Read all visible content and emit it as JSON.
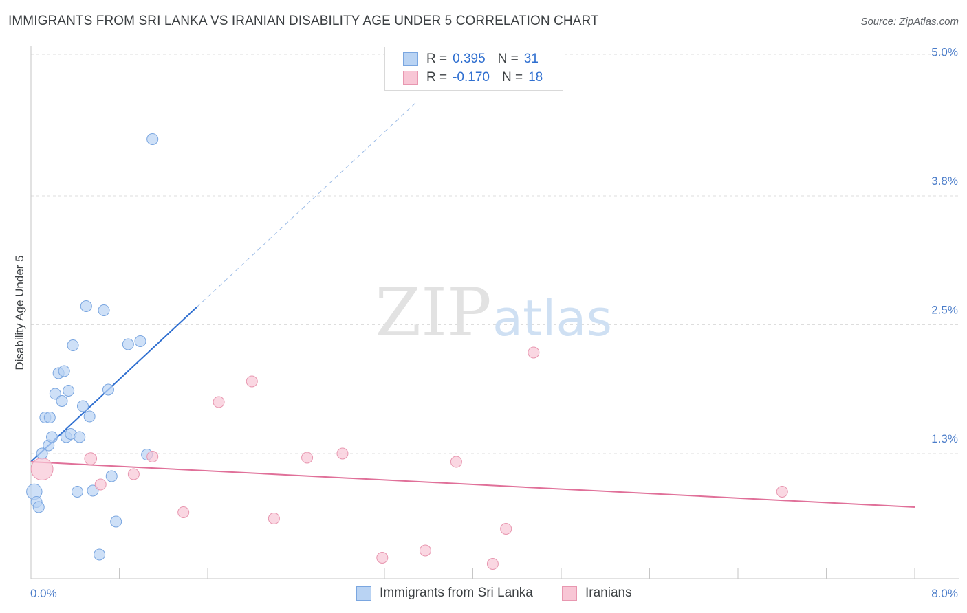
{
  "header": {
    "title": "IMMIGRANTS FROM SRI LANKA VS IRANIAN DISABILITY AGE UNDER 5 CORRELATION CHART",
    "source": "Source: ZipAtlas.com"
  },
  "watermark": {
    "zip": "ZIP",
    "atlas": "atlas"
  },
  "legend": {
    "series1": {
      "r_label": "R =",
      "r_value": "0.395",
      "n_label": "N =",
      "n_value": "31"
    },
    "series2": {
      "r_label": "R =",
      "r_value": "-0.170",
      "n_label": "N =",
      "n_value": "18"
    }
  },
  "colors": {
    "blue_fill": "#b9d3f3",
    "blue_stroke": "#7aa6e0",
    "blue_line": "#2f6fd0",
    "pink_fill": "#f8c6d5",
    "pink_stroke": "#e897b0",
    "pink_line": "#e07099",
    "grid": "#dddddd",
    "axis_text": "#4a7cc9"
  },
  "chart_data": {
    "type": "scatter",
    "title": "IMMIGRANTS FROM SRI LANKA VS IRANIAN DISABILITY AGE UNDER 5 CORRELATION CHART",
    "ylabel": "Disability Age Under 5",
    "xlabel": "",
    "xlim": [
      0,
      8
    ],
    "ylim": [
      0.05,
      5.15
    ],
    "x_tick_labels": [
      "0.0%",
      "8.0%"
    ],
    "y_ticks": [
      {
        "value": 1.25,
        "label": "1.3%"
      },
      {
        "value": 2.5,
        "label": "2.5%"
      },
      {
        "value": 3.75,
        "label": "3.8%"
      },
      {
        "value": 5.0,
        "label": "5.0%"
      }
    ],
    "grid": true,
    "legend_position": "bottom",
    "series": [
      {
        "name": "Immigrants from Sri Lanka",
        "color": "#7aa6e0",
        "points": [
          {
            "x": 0.03,
            "y": 0.88,
            "s": 1.4
          },
          {
            "x": 0.05,
            "y": 0.78,
            "s": 1
          },
          {
            "x": 0.07,
            "y": 0.73,
            "s": 1
          },
          {
            "x": 0.1,
            "y": 1.25,
            "s": 1
          },
          {
            "x": 0.13,
            "y": 1.6,
            "s": 1
          },
          {
            "x": 0.16,
            "y": 1.33,
            "s": 1
          },
          {
            "x": 0.17,
            "y": 1.6,
            "s": 1
          },
          {
            "x": 0.19,
            "y": 1.41,
            "s": 1
          },
          {
            "x": 0.22,
            "y": 1.83,
            "s": 1
          },
          {
            "x": 0.25,
            "y": 2.03,
            "s": 1
          },
          {
            "x": 0.28,
            "y": 1.76,
            "s": 1
          },
          {
            "x": 0.3,
            "y": 2.05,
            "s": 1
          },
          {
            "x": 0.32,
            "y": 1.41,
            "s": 1
          },
          {
            "x": 0.34,
            "y": 1.86,
            "s": 1
          },
          {
            "x": 0.36,
            "y": 1.44,
            "s": 1
          },
          {
            "x": 0.38,
            "y": 2.3,
            "s": 1
          },
          {
            "x": 0.42,
            "y": 0.88,
            "s": 1
          },
          {
            "x": 0.44,
            "y": 1.41,
            "s": 1
          },
          {
            "x": 0.47,
            "y": 1.71,
            "s": 1
          },
          {
            "x": 0.5,
            "y": 2.68,
            "s": 1
          },
          {
            "x": 0.53,
            "y": 1.61,
            "s": 1
          },
          {
            "x": 0.56,
            "y": 0.89,
            "s": 1
          },
          {
            "x": 0.62,
            "y": 0.27,
            "s": 1
          },
          {
            "x": 0.66,
            "y": 2.64,
            "s": 1
          },
          {
            "x": 0.7,
            "y": 1.87,
            "s": 1
          },
          {
            "x": 0.73,
            "y": 1.03,
            "s": 1
          },
          {
            "x": 0.77,
            "y": 0.59,
            "s": 1
          },
          {
            "x": 0.88,
            "y": 2.31,
            "s": 1
          },
          {
            "x": 0.99,
            "y": 2.34,
            "s": 1
          },
          {
            "x": 1.05,
            "y": 1.24,
            "s": 1
          },
          {
            "x": 1.1,
            "y": 4.3,
            "s": 1
          }
        ],
        "trend": {
          "x1": 0.0,
          "y1": 1.17,
          "x2": 1.5,
          "y2": 2.67,
          "dash_to_x": 3.5
        }
      },
      {
        "name": "Iranians",
        "color": "#e897b0",
        "points": [
          {
            "x": 0.1,
            "y": 1.1,
            "s": 2.0
          },
          {
            "x": 0.54,
            "y": 1.2,
            "s": 1.1
          },
          {
            "x": 0.63,
            "y": 0.95,
            "s": 1
          },
          {
            "x": 0.93,
            "y": 1.05,
            "s": 1
          },
          {
            "x": 1.1,
            "y": 1.22,
            "s": 1
          },
          {
            "x": 1.38,
            "y": 0.68,
            "s": 1
          },
          {
            "x": 1.7,
            "y": 1.75,
            "s": 1
          },
          {
            "x": 2.0,
            "y": 1.95,
            "s": 1
          },
          {
            "x": 2.2,
            "y": 0.62,
            "s": 1
          },
          {
            "x": 2.5,
            "y": 1.21,
            "s": 1
          },
          {
            "x": 2.82,
            "y": 1.25,
            "s": 1
          },
          {
            "x": 3.18,
            "y": 0.24,
            "s": 1
          },
          {
            "x": 3.57,
            "y": 0.31,
            "s": 1
          },
          {
            "x": 3.85,
            "y": 1.17,
            "s": 1
          },
          {
            "x": 4.18,
            "y": 0.18,
            "s": 1
          },
          {
            "x": 4.3,
            "y": 0.52,
            "s": 1
          },
          {
            "x": 4.55,
            "y": 2.23,
            "s": 1
          },
          {
            "x": 6.8,
            "y": 0.88,
            "s": 1
          }
        ],
        "trend": {
          "x1": 0.0,
          "y1": 1.17,
          "x2": 8.0,
          "y2": 0.73
        }
      }
    ]
  }
}
